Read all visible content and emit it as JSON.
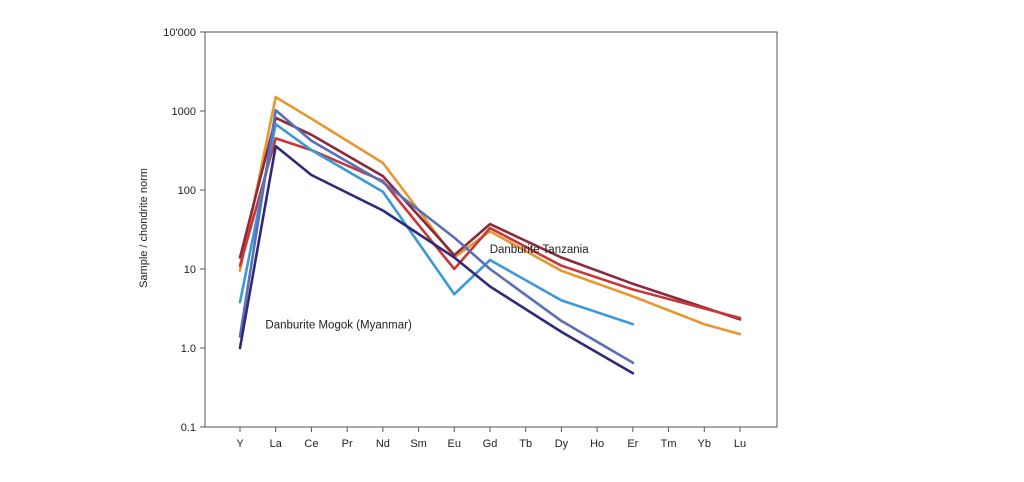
{
  "chart_data": {
    "type": "line",
    "title": "",
    "xlabel": "",
    "ylabel": "Sample / chondrite norm",
    "y_scale": "log",
    "ylim": [
      0.1,
      10000
    ],
    "y_tick_labels": [
      "0.1",
      "1.0",
      "10",
      "100",
      "1000",
      "10'000"
    ],
    "y_tick_values": [
      0.1,
      1,
      10,
      100,
      1000,
      10000
    ],
    "categories": [
      "Y",
      "La",
      "Ce",
      "Pr",
      "Nd",
      "Sm",
      "Eu",
      "Gd",
      "Tb",
      "Dy",
      "Ho",
      "Er",
      "Tm",
      "Yb",
      "Lu"
    ],
    "grid": false,
    "legend": "none",
    "annotations": [
      {
        "text": "Danburite Tanzania",
        "near_category": "Tb",
        "near_value": 13
      },
      {
        "text": "Danburite Mogok (Myanmar)",
        "near_category": "Ce",
        "near_value": 2.1
      }
    ],
    "series": [
      {
        "group": "Tanzania",
        "color": "#E8962E",
        "values": [
          9.5,
          1500,
          800,
          null,
          220,
          null,
          14,
          30,
          null,
          9.5,
          null,
          4.5,
          null,
          2,
          1.5
        ]
      },
      {
        "group": "Tanzania",
        "color": "#8B2A3C",
        "values": [
          14,
          820,
          500,
          null,
          150,
          null,
          15,
          37,
          null,
          14,
          null,
          6.5,
          null,
          null,
          2.3
        ]
      },
      {
        "group": "Tanzania",
        "color": "#C8373A",
        "values": [
          11,
          450,
          320,
          null,
          130,
          null,
          10,
          33,
          null,
          11,
          null,
          5.5,
          null,
          null,
          2.4
        ]
      },
      {
        "group": "Mogok",
        "color": "#3A99D8",
        "values": [
          3.8,
          680,
          320,
          null,
          95,
          null,
          4.8,
          13,
          null,
          4,
          null,
          2,
          null,
          null,
          null
        ]
      },
      {
        "group": "Mogok",
        "color": "#5A6FB8",
        "values": [
          1.4,
          1020,
          420,
          null,
          125,
          null,
          25,
          10,
          null,
          2.2,
          null,
          0.65,
          null,
          null,
          null
        ]
      },
      {
        "group": "Mogok",
        "color": "#2E2A7A",
        "values": [
          1.0,
          360,
          155,
          null,
          55,
          null,
          14,
          6,
          null,
          1.6,
          null,
          0.48,
          null,
          null,
          null
        ]
      }
    ]
  }
}
